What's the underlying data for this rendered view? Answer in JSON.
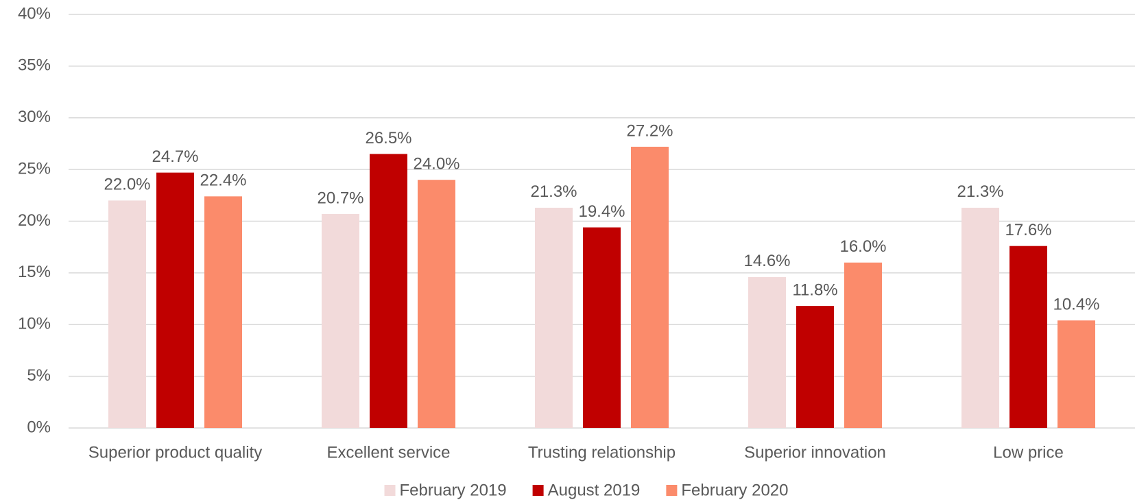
{
  "chart_data": {
    "type": "bar",
    "categories": [
      "Superior product quality",
      "Excellent service",
      "Trusting relationship",
      "Superior innovation",
      "Low price"
    ],
    "series": [
      {
        "name": "February 2019",
        "color": "#f2dada",
        "values": [
          22.0,
          20.7,
          21.3,
          14.6,
          21.3
        ],
        "value_labels": [
          "22.0%",
          "20.7%",
          "21.3%",
          "14.6%",
          "21.3%"
        ]
      },
      {
        "name": "August 2019",
        "color": "#c00000",
        "values": [
          24.7,
          26.5,
          19.4,
          11.8,
          17.6
        ],
        "value_labels": [
          "24.7%",
          "26.5%",
          "19.4%",
          "11.8%",
          "17.6%"
        ]
      },
      {
        "name": "February 2020",
        "color": "#fb8b6b",
        "values": [
          22.4,
          24.0,
          27.2,
          16.0,
          10.4
        ],
        "value_labels": [
          "22.4%",
          "24.0%",
          "27.2%",
          "16.0%",
          "10.4%"
        ]
      }
    ],
    "ylim": [
      0,
      40
    ],
    "yticks": [
      {
        "value": 0,
        "label": "0%"
      },
      {
        "value": 5,
        "label": "5%"
      },
      {
        "value": 10,
        "label": "10%"
      },
      {
        "value": 15,
        "label": "15%"
      },
      {
        "value": 20,
        "label": "20%"
      },
      {
        "value": 25,
        "label": "25%"
      },
      {
        "value": 30,
        "label": "30%"
      },
      {
        "value": 35,
        "label": "35%"
      },
      {
        "value": 40,
        "label": "40%"
      }
    ],
    "grid": true,
    "legend": "bottom"
  }
}
